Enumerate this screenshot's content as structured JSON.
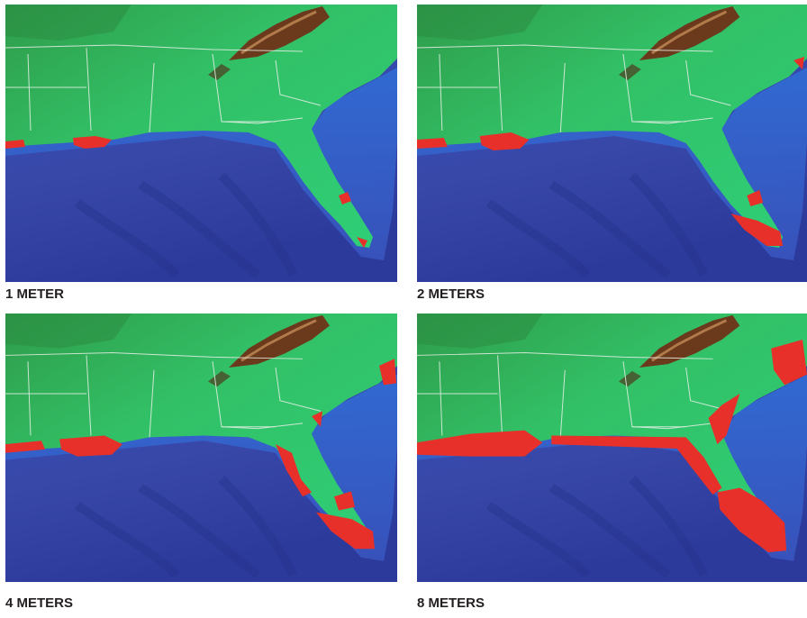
{
  "panels": [
    {
      "caption": "1 METER"
    },
    {
      "caption": "2 METERS"
    },
    {
      "caption": "4 METERS"
    },
    {
      "caption": "8 METERS"
    }
  ]
}
